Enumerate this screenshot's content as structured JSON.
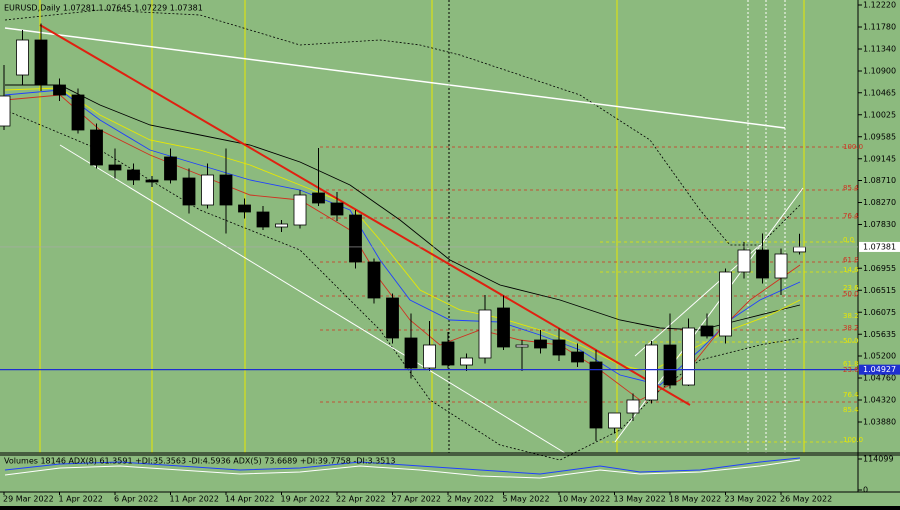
{
  "chart_data": {
    "type": "candlestick",
    "title": "EURUSD,Daily  1.07281 1.07645 1.07229 1.07381",
    "categories": [
      "29 Mar 2022",
      null,
      null,
      "1 Apr 2022",
      null,
      null,
      "6 Apr 2022",
      null,
      null,
      "11 Apr 2022",
      null,
      null,
      "14 Apr 2022",
      null,
      null,
      "19 Apr 2022",
      null,
      null,
      "22 Apr 2022",
      null,
      null,
      "27 Apr 2022",
      null,
      null,
      "2 May 2022",
      null,
      null,
      "5 May 2022",
      null,
      null,
      "10 May 2022",
      null,
      null,
      "13 May 2022",
      null,
      null,
      "18 May 2022",
      null,
      null,
      "23 May 2022",
      null,
      null,
      "26 May 2022",
      null
    ],
    "open": [
      1.098,
      1.1082,
      1.1152,
      1.1062,
      1.1042,
      1.0972,
      1.0902,
      1.0892,
      1.0872,
      1.0918,
      1.0876,
      1.0822,
      1.0882,
      1.0822,
      1.0808,
      1.0778,
      1.0782,
      1.0846,
      1.0826,
      1.0802,
      1.0708,
      1.0636,
      1.0556,
      1.0496,
      1.0548,
      1.0502,
      1.0516,
      1.0616,
      1.0538,
      1.0552,
      1.0552,
      1.0528,
      1.0508,
      1.0376,
      1.0406,
      1.0432,
      1.0542,
      1.0462,
      1.058,
      1.056,
      1.0688,
      1.0732,
      1.0676,
      1.07281
    ],
    "high": [
      1.1102,
      1.1172,
      1.1185,
      1.1075,
      1.1055,
      1.0985,
      1.0935,
      1.0905,
      1.088,
      1.0935,
      1.0895,
      1.0905,
      1.0935,
      1.0835,
      1.082,
      1.0792,
      1.0852,
      1.0936,
      1.0848,
      1.0812,
      1.0715,
      1.0645,
      1.0605,
      1.059,
      1.0568,
      1.0525,
      1.0642,
      1.0641,
      1.0552,
      1.0572,
      1.0575,
      1.0545,
      1.0532,
      1.0405,
      1.0445,
      1.055,
      1.0605,
      1.0595,
      1.0605,
      1.0695,
      1.0748,
      1.0765,
      1.0735,
      1.07645
    ],
    "low": [
      1.0972,
      1.1062,
      1.105,
      1.103,
      1.0965,
      1.0895,
      1.0875,
      1.0862,
      1.0858,
      1.0865,
      1.0805,
      1.0815,
      1.0765,
      1.0795,
      1.0772,
      1.0768,
      1.0775,
      1.082,
      1.079,
      1.0695,
      1.0625,
      1.0545,
      1.0475,
      1.049,
      1.0495,
      1.049,
      1.0505,
      1.0532,
      1.049,
      1.0525,
      1.051,
      1.0498,
      1.035,
      1.0365,
      1.039,
      1.0425,
      1.0455,
      1.046,
      1.0555,
      1.0545,
      1.0675,
      1.0665,
      1.0642,
      1.07229
    ],
    "close": [
      1.104,
      1.1152,
      1.1062,
      1.1042,
      1.0972,
      1.0902,
      1.0892,
      1.0872,
      1.0868,
      1.0872,
      1.0822,
      1.0882,
      1.0822,
      1.0808,
      1.0778,
      1.0784,
      1.0842,
      1.0826,
      1.0802,
      1.0708,
      1.0636,
      1.0556,
      1.0496,
      1.0542,
      1.0502,
      1.0516,
      1.0612,
      1.0538,
      1.0542,
      1.0536,
      1.0522,
      1.0508,
      1.0376,
      1.0406,
      1.0432,
      1.0542,
      1.0462,
      1.0576,
      1.056,
      1.0688,
      1.0732,
      1.0676,
      1.0724,
      1.07381
    ],
    "up_color": "#ffffff",
    "down_color": "#000000",
    "ylim": [
      1.0326,
      1.1232
    ],
    "yticks": [
      {
        "value": 1.1222,
        "label": "1.12220"
      },
      {
        "value": 1.1178,
        "label": "1.11780"
      },
      {
        "value": 1.1134,
        "label": "1.11340"
      },
      {
        "value": 1.109,
        "label": "1.10900"
      },
      {
        "value": 1.10465,
        "label": "1.10465"
      },
      {
        "value": 1.10025,
        "label": "1.10025"
      },
      {
        "value": 1.09585,
        "label": "1.09585"
      },
      {
        "value": 1.09145,
        "label": "1.09145"
      },
      {
        "value": 1.0871,
        "label": "1.08710"
      },
      {
        "value": 1.0827,
        "label": "1.08270"
      },
      {
        "value": 1.0783,
        "label": "1.07830"
      },
      {
        "value": 1.06955,
        "label": "1.06955"
      },
      {
        "value": 1.06515,
        "label": "1.06515"
      },
      {
        "value": 1.06075,
        "label": "1.06075"
      },
      {
        "value": 1.05635,
        "label": "1.05635"
      },
      {
        "value": 1.052,
        "label": "1.05200"
      },
      {
        "value": 1.0476,
        "label": "1.04760"
      },
      {
        "value": 1.0432,
        "label": "1.04320"
      },
      {
        "value": 1.0388,
        "label": "1.03880"
      }
    ],
    "current_price": {
      "value": 1.07381,
      "label": "1.07381"
    },
    "marked_level": {
      "value": 1.04927,
      "label": "1.04927"
    },
    "fib_red": [
      "100.0",
      "85.4",
      "76.4",
      "61.8",
      "50.0",
      "38.2",
      "23.6"
    ],
    "fib_yellow": [
      "0.0",
      "14.6",
      "23.6",
      "38.2",
      "50.0",
      "61.8",
      "76.4",
      "85.4",
      "100.0"
    ],
    "indicator": {
      "title": "Volumes 18146  ADX(8) 61.3591 +DI:35.3563 -DI:4.5936  ADX(5) 73.6689 +DI:39.7758 -DI:3.3513",
      "yticks": [
        114099,
        0
      ]
    }
  }
}
